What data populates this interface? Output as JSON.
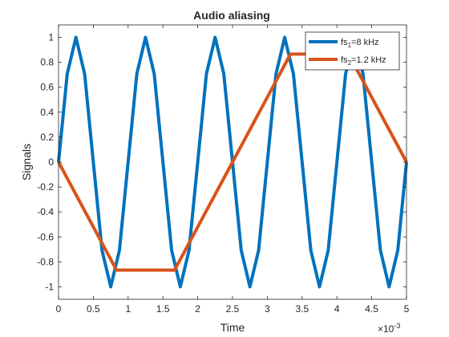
{
  "chart_data": {
    "type": "line",
    "title": "Audio aliasing",
    "xlabel": "Time",
    "ylabel": "Signals",
    "x_exponent_label": "×10",
    "x_exponent_power": "-3",
    "xlim": [
      0,
      5
    ],
    "ylim": [
      -1.1,
      1.1
    ],
    "xticks": [
      0,
      0.5,
      1,
      1.5,
      2,
      2.5,
      3,
      3.5,
      4,
      4.5,
      5
    ],
    "xtick_labels": [
      "0",
      "0.5",
      "1",
      "1.5",
      "2",
      "2.5",
      "3",
      "3.5",
      "4",
      "4.5",
      "5"
    ],
    "yticks": [
      -1,
      -0.8,
      -0.6,
      -0.4,
      -0.2,
      0,
      0.2,
      0.4,
      0.6,
      0.8,
      1
    ],
    "ytick_labels": [
      "-1",
      "-0.8",
      "-0.6",
      "-0.4",
      "-0.2",
      "0",
      "0.2",
      "0.4",
      "0.6",
      "0.8",
      "1"
    ],
    "grid": false,
    "legend_position": "top-right",
    "series": [
      {
        "legend_prefix": "fs",
        "legend_sub": "1",
        "legend_suffix": "=8 kHz",
        "color": "#0072BD",
        "x": [
          0,
          0.125,
          0.25,
          0.375,
          0.5,
          0.625,
          0.75,
          0.875,
          1.0,
          1.125,
          1.25,
          1.375,
          1.5,
          1.625,
          1.75,
          1.875,
          2.0,
          2.125,
          2.25,
          2.375,
          2.5,
          2.625,
          2.75,
          2.875,
          3.0,
          3.125,
          3.25,
          3.375,
          3.5,
          3.625,
          3.75,
          3.875,
          4.0,
          4.125,
          4.25,
          4.375,
          4.5,
          4.625,
          4.75,
          4.875,
          5.0
        ],
        "y": [
          0,
          0.707,
          1,
          0.707,
          0,
          -0.707,
          -1,
          -0.707,
          0,
          0.707,
          1,
          0.707,
          0,
          -0.707,
          -1,
          -0.707,
          0,
          0.707,
          1,
          0.707,
          0,
          -0.707,
          -1,
          -0.707,
          0,
          0.707,
          1,
          0.707,
          0,
          -0.707,
          -1,
          -0.707,
          0,
          0.707,
          1,
          0.707,
          0,
          -0.707,
          -1,
          -0.707,
          0
        ]
      },
      {
        "legend_prefix": "fs",
        "legend_sub": "2",
        "legend_suffix": "=1.2 kHz",
        "color": "#D95319",
        "x": [
          0,
          0.833,
          1.667,
          2.5,
          3.333,
          4.167,
          5.0
        ],
        "y": [
          0,
          -0.866,
          -0.866,
          0,
          0.866,
          0.866,
          0
        ]
      }
    ]
  }
}
